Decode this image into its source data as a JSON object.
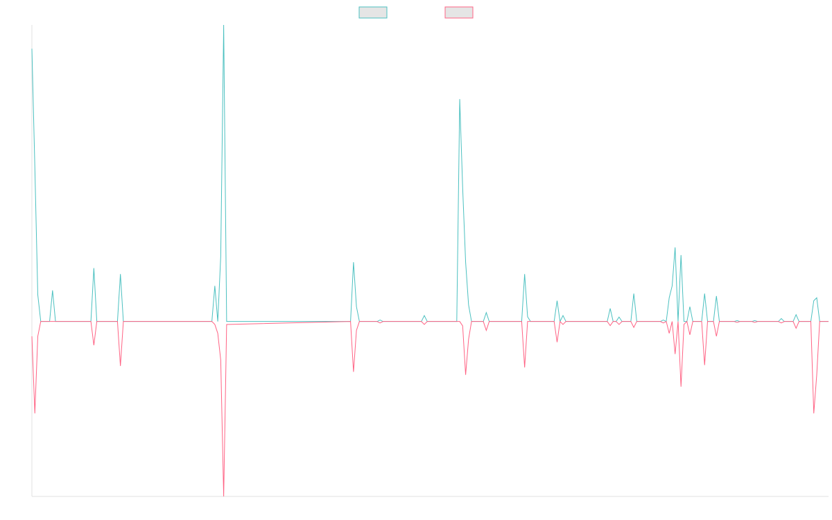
{
  "chart_data": {
    "type": "line",
    "xlim": [
      0,
      270
    ],
    "ylim": [
      -59,
      100
    ],
    "legend": "top",
    "x": [
      0,
      1,
      2,
      3,
      6,
      7,
      8,
      20,
      21,
      22,
      29,
      30,
      31,
      61,
      62,
      63,
      64,
      65,
      66,
      108,
      109,
      110,
      111,
      117,
      118,
      119,
      132,
      133,
      134,
      144,
      145,
      146,
      147,
      148,
      149,
      153,
      154,
      155,
      166,
      167,
      168,
      169,
      177,
      178,
      179,
      180,
      181,
      195,
      196,
      197,
      198,
      199,
      200,
      203,
      204,
      205,
      213,
      214,
      215,
      216,
      217,
      218,
      219,
      220,
      221,
      222,
      223,
      224,
      227,
      228,
      229,
      231,
      232,
      233,
      238,
      239,
      240,
      244,
      245,
      246,
      253,
      254,
      255,
      258,
      259,
      260,
      264,
      265,
      266,
      267,
      270
    ],
    "series": [
      {
        "color": "#4bc0c0",
        "values": [
          92,
          52,
          9,
          0,
          0,
          10.5,
          0,
          0,
          18,
          0,
          0,
          16,
          0,
          0,
          12,
          0,
          22,
          100,
          0,
          0,
          20,
          5,
          0,
          0,
          0.5,
          0,
          0,
          2,
          0,
          0,
          75,
          45,
          20,
          5.6,
          0,
          0,
          3,
          0,
          0,
          16,
          1.6,
          0,
          0,
          7,
          0,
          2,
          0,
          0,
          4.4,
          0,
          0,
          1.5,
          0,
          0,
          9.4,
          0,
          0,
          0.5,
          0,
          8,
          12,
          25,
          0,
          22.4,
          0,
          0,
          5,
          0,
          0,
          9.4,
          0,
          0,
          8.6,
          0,
          0,
          0.3,
          0,
          0,
          0.3,
          0,
          0,
          1,
          0,
          0,
          2.3,
          0,
          0,
          7,
          8,
          0,
          0
        ]
      },
      {
        "color": "#ff6384",
        "values": [
          -5,
          -31,
          -5,
          0,
          0,
          0,
          0,
          0,
          -8,
          0,
          0,
          -15,
          0,
          0,
          -1,
          -4,
          -13,
          -59,
          -1,
          0,
          -17,
          -3,
          0,
          0,
          -0.5,
          0,
          0,
          -1,
          0,
          0,
          0,
          -1.5,
          -18,
          -6,
          0,
          0,
          -3,
          0,
          0,
          -15.5,
          0,
          0,
          0,
          -7,
          0,
          -1,
          0,
          0,
          -1.4,
          0,
          0,
          -1,
          0,
          0,
          -2,
          0,
          0,
          -0.5,
          0,
          -4,
          0,
          -11,
          0,
          -22,
          -1,
          0,
          -4.5,
          0,
          0,
          -14.7,
          0,
          0,
          -5,
          0,
          0,
          -0.3,
          0,
          0,
          -0.3,
          0,
          0,
          -0.5,
          0,
          0,
          -2.3,
          0,
          0,
          -31,
          -18,
          0,
          0
        ]
      }
    ]
  }
}
